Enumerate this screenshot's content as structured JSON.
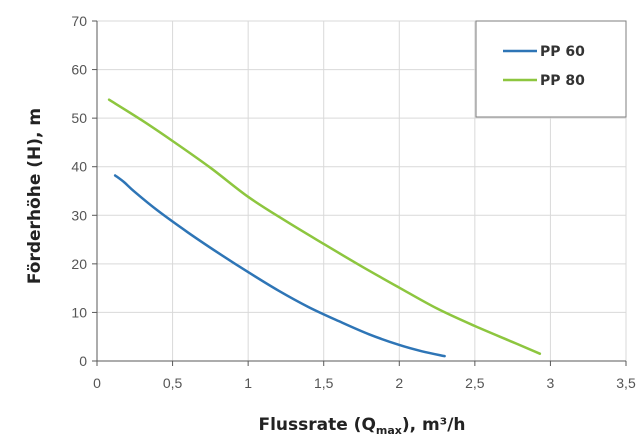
{
  "chart_data": {
    "type": "line",
    "xlabel_main": "Flussrate (Q",
    "xlabel_sub": "max",
    "xlabel_tail": "), m³/h",
    "ylabel": "Förderhöhe (H), m",
    "xlim": [
      0,
      3.5
    ],
    "ylim": [
      0,
      70
    ],
    "x_ticks": [
      0,
      0.5,
      1,
      1.5,
      2,
      2.5,
      3,
      3.5
    ],
    "x_tick_labels": [
      "0",
      "0,5",
      "1",
      "1,5",
      "2",
      "2,5",
      "3",
      "3,5"
    ],
    "y_ticks": [
      0,
      10,
      20,
      30,
      40,
      50,
      60,
      70
    ],
    "y_tick_labels": [
      "0",
      "10",
      "20",
      "30",
      "40",
      "50",
      "60",
      "70"
    ],
    "grid": true,
    "legend_position": "top-right",
    "series": [
      {
        "name": "PP 60",
        "color": "#2e75b6",
        "x": [
          0.12,
          0.18,
          0.25,
          0.4,
          0.6,
          0.8,
          1.0,
          1.2,
          1.4,
          1.6,
          1.8,
          2.0,
          2.15,
          2.3
        ],
        "y": [
          38.2,
          36.8,
          34.8,
          31.0,
          26.5,
          22.3,
          18.3,
          14.5,
          11.1,
          8.2,
          5.5,
          3.3,
          2.0,
          1.0
        ]
      },
      {
        "name": "PP 80",
        "color": "#8dc63f",
        "x": [
          0.08,
          0.3,
          0.5,
          0.75,
          1.0,
          1.25,
          1.5,
          1.75,
          2.0,
          2.25,
          2.5,
          2.75,
          2.93
        ],
        "y": [
          53.8,
          49.5,
          45.3,
          39.8,
          33.8,
          28.8,
          24.1,
          19.5,
          15.1,
          10.8,
          7.2,
          3.9,
          1.5
        ]
      }
    ]
  }
}
